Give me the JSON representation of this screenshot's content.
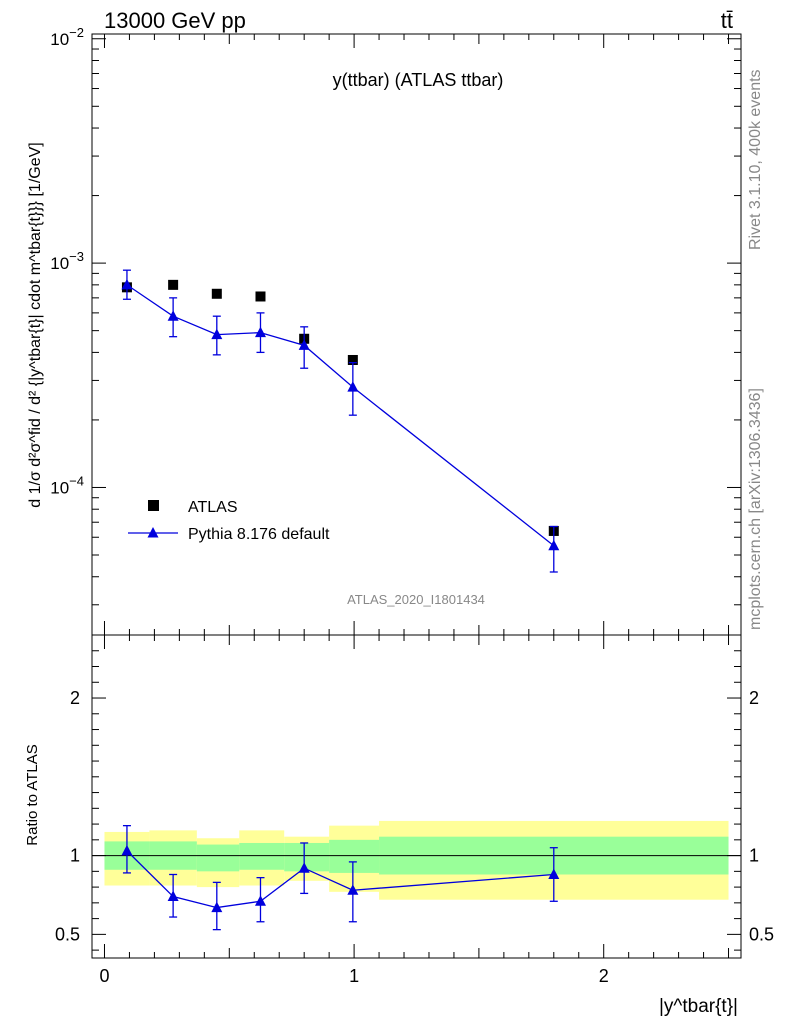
{
  "header": {
    "left": "13000 GeV pp",
    "right": "tt̄"
  },
  "side_labels": {
    "rivet": "Rivet 3.1.10,  400k events",
    "mcplots": "mcplots.cern.ch [arXiv:1306.3436]"
  },
  "chart_data": [
    {
      "type": "scatter",
      "title": "y(ttbar) (ATLAS ttbar)",
      "watermark": "ATLAS_2020_I1801434",
      "ylabel": "d 1/σ d²σ^fid / d² {|y^tbar{t}| cdot m^tbar{t}}} [1/GeV]",
      "yscale": "log",
      "ylim": [
        2.2e-05,
        0.0105
      ],
      "xlim": [
        -0.05,
        2.55
      ],
      "y_tick_labels": [
        "10^-4",
        "10^-3",
        "10^-2"
      ],
      "legend": {
        "position": "bottom-left",
        "entries": [
          "ATLAS",
          "Pythia 8.176 default"
        ]
      },
      "series": [
        {
          "name": "ATLAS",
          "marker": "square",
          "color": "#000000",
          "x": [
            0.09,
            0.275,
            0.45,
            0.625,
            0.8,
            0.995,
            1.8
          ],
          "y": [
            0.00078,
            0.0008,
            0.00073,
            0.00071,
            0.00046,
            0.00037,
            6.4e-05
          ]
        },
        {
          "name": "Pythia 8.176 default",
          "marker": "triangle",
          "color": "#0000dd",
          "x": [
            0.09,
            0.275,
            0.45,
            0.625,
            0.8,
            0.995,
            1.8
          ],
          "y": [
            0.0008,
            0.00058,
            0.00048,
            0.00049,
            0.00043,
            0.00028,
            5.5e-05
          ],
          "yerr_low": [
            0.00011,
            0.00011,
            9e-05,
            9e-05,
            9e-05,
            7e-05,
            1.3e-05
          ],
          "yerr_high": [
            0.00013,
            0.00012,
            0.0001,
            0.00011,
            9e-05,
            8e-05,
            1.2e-05
          ]
        }
      ]
    },
    {
      "type": "line",
      "ylabel": "Ratio to ATLAS",
      "xlabel": "|y^tbar{t}|",
      "xlim": [
        -0.05,
        2.55
      ],
      "ylim": [
        0.35,
        2.4
      ],
      "x_tick_labels": [
        "0",
        "1",
        "2"
      ],
      "y_tick_labels": [
        "0.5",
        "1",
        "2"
      ],
      "reference_line": 1,
      "bands": {
        "edges": [
          0,
          0.18,
          0.37,
          0.54,
          0.72,
          0.9,
          1.1,
          2.5
        ],
        "yellow": {
          "color": "#ffff99",
          "low": [
            0.81,
            0.81,
            0.8,
            0.81,
            0.84,
            0.77,
            0.72
          ],
          "high": [
            1.15,
            1.16,
            1.11,
            1.16,
            1.12,
            1.19,
            1.22
          ]
        },
        "green": {
          "color": "#99ff99",
          "low": [
            0.91,
            0.91,
            0.9,
            0.91,
            0.9,
            0.89,
            0.88
          ],
          "high": [
            1.09,
            1.09,
            1.07,
            1.08,
            1.08,
            1.1,
            1.12
          ]
        }
      },
      "series": [
        {
          "name": "Pythia 8.176 default",
          "color": "#0000dd",
          "x": [
            0.09,
            0.275,
            0.45,
            0.625,
            0.8,
            0.995,
            1.8
          ],
          "y": [
            1.03,
            0.74,
            0.67,
            0.71,
            0.92,
            0.78,
            0.88
          ],
          "yerr_low": [
            0.14,
            0.13,
            0.14,
            0.13,
            0.16,
            0.2,
            0.17
          ],
          "yerr_high": [
            0.16,
            0.14,
            0.16,
            0.15,
            0.16,
            0.18,
            0.17
          ]
        }
      ]
    }
  ]
}
